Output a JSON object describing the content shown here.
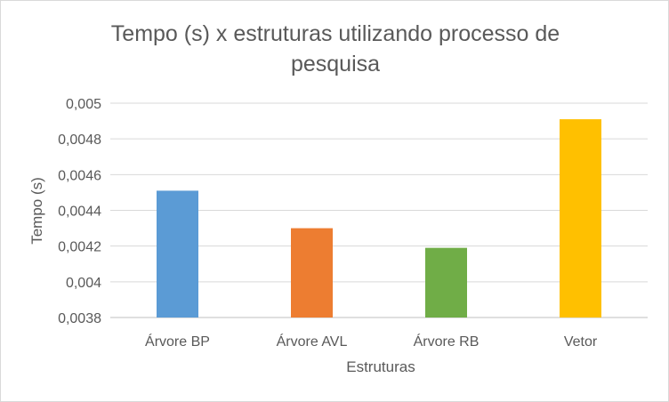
{
  "chart_data": {
    "type": "bar",
    "title_lines": [
      "Tempo (s) x estruturas utilizando processo de",
      "pesquisa"
    ],
    "xlabel": "Estruturas",
    "ylabel": "Tempo (s)",
    "categories": [
      "Árvore BP",
      "Árvore AVL",
      "Árvore RB",
      "Vetor"
    ],
    "values": [
      0.00451,
      0.0043,
      0.00419,
      0.00491
    ],
    "colors": [
      "#5b9bd5",
      "#ed7d31",
      "#70ad47",
      "#ffc000"
    ],
    "ylim": [
      0.0038,
      0.005
    ],
    "yticks": [
      0.0038,
      0.004,
      0.0042,
      0.0044,
      0.0046,
      0.0048,
      0.005
    ],
    "ytick_labels": [
      "0,0038",
      "0,004",
      "0,0042",
      "0,0044",
      "0,0046",
      "0,0048",
      "0,005"
    ],
    "grid": true,
    "legend": "none"
  }
}
